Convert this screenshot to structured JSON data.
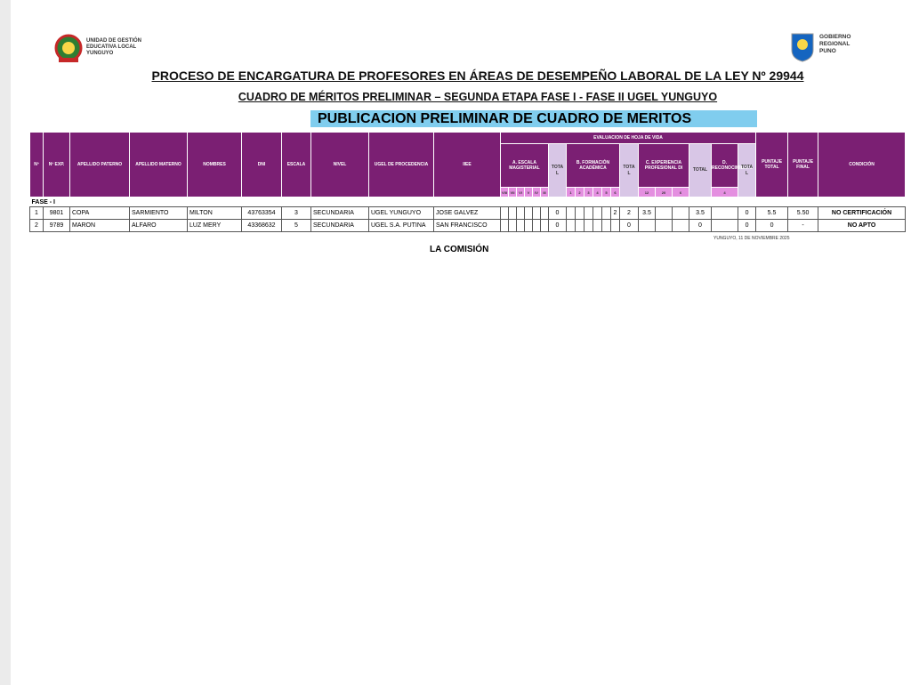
{
  "header": {
    "left_logo": [
      "UNIDAD DE GESTIÓN",
      "EDUCATIVA LOCAL",
      "YUNGUYO"
    ],
    "right_logo": [
      "GOBIERNO",
      "REGIONAL",
      "PUNO"
    ],
    "title": "PROCESO DE ENCARGATURA DE PROFESORES EN ÁREAS DE DESEMPEÑO LABORAL DE LA LEY Nº 29944",
    "subtitle": "CUADRO DE MÉRITOS PRELIMINAR – SEGUNDA ETAPA FASE I - FASE II UGEL YUNGUYO",
    "banner": "PUBLICACION PRELIMINAR DE CUADRO DE MERITOS"
  },
  "table": {
    "columns": [
      "Nº",
      "Nº EXP.",
      "APELLIDO PATERNO",
      "APELLIDO MATERNO",
      "NOMBRES",
      "DNI",
      "ESCALA",
      "NIVEL",
      "UGEL DE PROCEDENCIA",
      "IIEE"
    ],
    "evaluation": "EVALUACION DE HOJA DE VIDA",
    "groups": [
      {
        "name": "A. ESCALA MAGISTERIAL",
        "subs": [
          "VIII",
          "VII",
          "VI",
          "V",
          "IV",
          "III"
        ],
        "total": "TOTAL"
      },
      {
        "name": "B. FORMACIÓN ACADÉMICA",
        "subs": [
          "1",
          "2",
          "3",
          "4",
          "5",
          "6"
        ],
        "total": "TOTAL"
      },
      {
        "name": "C. EXPERIENCIA PROFESIONAL DI",
        "subs": [
          "12",
          "20",
          "6"
        ],
        "total": "TOTAL"
      },
      {
        "name": "D. RECONOCIMIENTO",
        "subs": [
          "4"
        ],
        "total": "TOTAL"
      }
    ],
    "end_columns": [
      "PUNTAJE TOTAL",
      "PUNTAJE FINAL",
      "CONDICIÓN"
    ],
    "section": "FASE - I",
    "rows": [
      [
        "1",
        "9801",
        "COPA",
        "SARMIENTO",
        "MILTON",
        "43763354",
        "3",
        "SECUNDARIA",
        "UGEL YUNGUYO",
        "JOSE GALVEZ",
        null,
        null,
        null,
        null,
        null,
        null,
        "0",
        null,
        null,
        null,
        null,
        null,
        "2",
        "2",
        "3.5",
        null,
        null,
        "3.5",
        null,
        "0",
        "5.5",
        "5.50",
        "NO CERTIFICACIÓN"
      ],
      [
        "2",
        "9789",
        "MARON",
        "ALFARO",
        "LUZ MERY",
        "43368632",
        "5",
        "SECUNDARIA",
        "UGEL S.A. PUTINA",
        "SAN FRANCISCO",
        null,
        null,
        null,
        null,
        null,
        null,
        "0",
        null,
        null,
        null,
        null,
        null,
        null,
        "0",
        null,
        null,
        null,
        "0",
        null,
        "0",
        "0",
        "-",
        "NO APTO"
      ]
    ]
  },
  "footer": {
    "date": "YUNGUYO, 11 DE NOVIEMBRE 2025",
    "signature": "LA COMISIÓN"
  }
}
